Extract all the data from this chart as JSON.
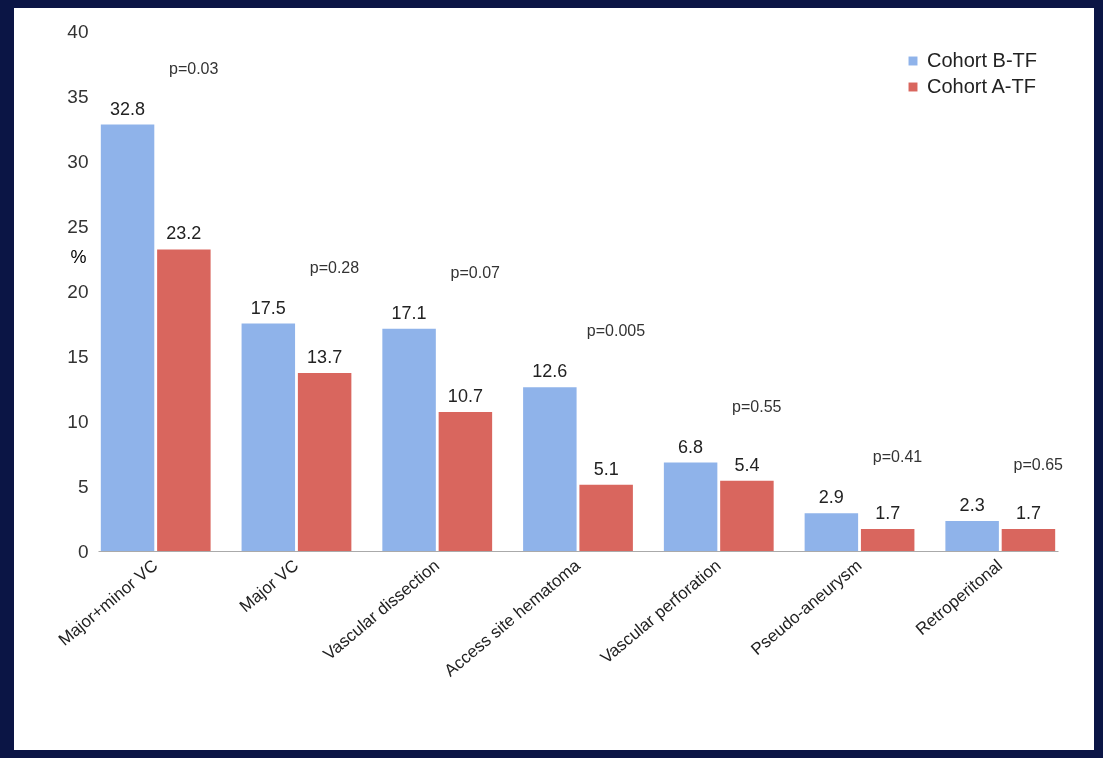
{
  "chart_data": {
    "type": "bar",
    "ylabel": "%",
    "categories": [
      "Major+minor VC",
      "Major VC",
      "Vascular dissection",
      "Access site hematoma",
      "Vascular perforation",
      "Pseudo-aneurysm",
      "Retroperitonal"
    ],
    "series": [
      {
        "name": "Cohort B-TF",
        "color": "#8fb3ea",
        "values": [
          32.8,
          17.5,
          17.1,
          12.6,
          6.8,
          2.9,
          2.3
        ]
      },
      {
        "name": "Cohort A-TF",
        "color": "#d9665e",
        "values": [
          23.2,
          13.7,
          10.7,
          5.1,
          5.4,
          1.7,
          1.7
        ]
      }
    ],
    "ylim": [
      0,
      40
    ],
    "yticks": [
      0,
      5,
      10,
      15,
      20,
      25,
      30,
      35,
      40
    ],
    "data_labels": true,
    "legend": "top right",
    "grid": false,
    "annotations": [
      "p=0.03",
      "p=0.28",
      "p=0.07",
      "p=0.005",
      "p=0.55",
      "p=0.41",
      "p=0.65"
    ]
  }
}
